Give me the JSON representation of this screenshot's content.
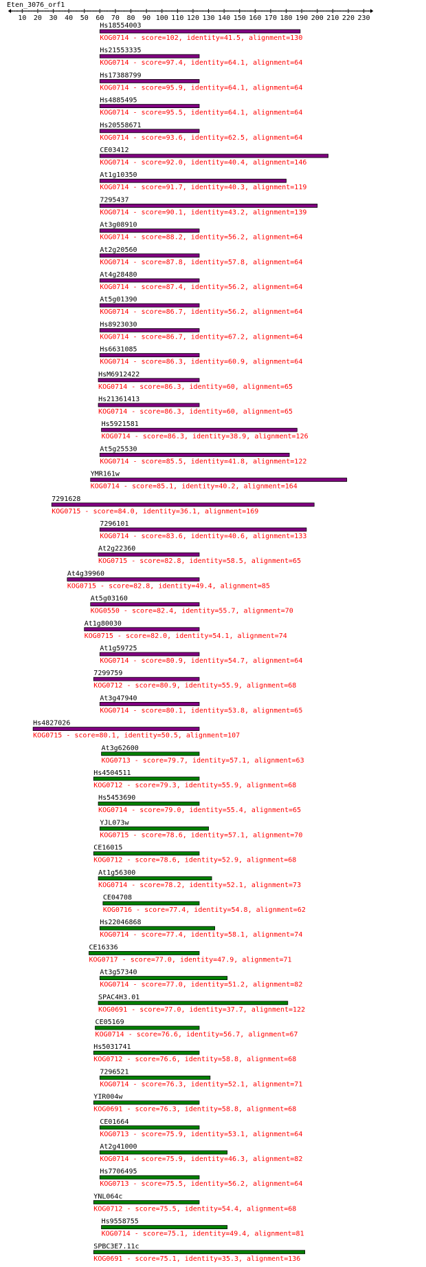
{
  "chart_data": {
    "type": "bar",
    "title": "Eten_3076_orf1",
    "xlim": [
      1,
      236
    ],
    "x_ticks": [
      10,
      20,
      30,
      40,
      50,
      60,
      70,
      80,
      90,
      100,
      110,
      120,
      130,
      140,
      150,
      160,
      170,
      180,
      190,
      200,
      210,
      220,
      230
    ],
    "colors": {
      "axis": "#000000",
      "name": "#000000",
      "description": "#ff0000",
      "bar_high": "#800080",
      "bar_low": "#008000",
      "bar_edge": "#000000"
    },
    "hits": [
      {
        "name": "Hs18554003",
        "kog": "KOG0714",
        "score": 102,
        "identity": 41.5,
        "alignment": 130,
        "start": 60,
        "end": 189,
        "color_group": "high",
        "label": "KOG0714 - score=102, identity=41.5, alignment=130"
      },
      {
        "name": "Hs21553335",
        "kog": "KOG0714",
        "score": 97.4,
        "identity": 64.1,
        "alignment": 64,
        "start": 60,
        "end": 124,
        "color_group": "high",
        "label": "KOG0714 - score=97.4, identity=64.1, alignment=64"
      },
      {
        "name": "Hs17388799",
        "kog": "KOG0714",
        "score": 95.9,
        "identity": 64.1,
        "alignment": 64,
        "start": 60,
        "end": 124,
        "color_group": "high",
        "label": "KOG0714 - score=95.9, identity=64.1, alignment=64"
      },
      {
        "name": "Hs4885495",
        "kog": "KOG0714",
        "score": 95.5,
        "identity": 64.1,
        "alignment": 64,
        "start": 60,
        "end": 124,
        "color_group": "high",
        "label": "KOG0714 - score=95.5, identity=64.1, alignment=64"
      },
      {
        "name": "Hs20558671",
        "kog": "KOG0714",
        "score": 93.6,
        "identity": 62.5,
        "alignment": 64,
        "start": 60,
        "end": 124,
        "color_group": "high",
        "label": "KOG0714 - score=93.6, identity=62.5, alignment=64"
      },
      {
        "name": "CE03412",
        "kog": "KOG0714",
        "score": 92.0,
        "identity": 40.4,
        "alignment": 146,
        "start": 60,
        "end": 207,
        "color_group": "high",
        "label": "KOG0714 - score=92.0, identity=40.4, alignment=146"
      },
      {
        "name": "At1g10350",
        "kog": "KOG0714",
        "score": 91.7,
        "identity": 40.3,
        "alignment": 119,
        "start": 60,
        "end": 180,
        "color_group": "high",
        "label": "KOG0714 - score=91.7, identity=40.3, alignment=119"
      },
      {
        "name": "7295437",
        "kog": "KOG0714",
        "score": 90.1,
        "identity": 43.2,
        "alignment": 139,
        "start": 60,
        "end": 200,
        "color_group": "high",
        "label": "KOG0714 - score=90.1, identity=43.2, alignment=139"
      },
      {
        "name": "At3g08910",
        "kog": "KOG0714",
        "score": 88.2,
        "identity": 56.2,
        "alignment": 64,
        "start": 60,
        "end": 124,
        "color_group": "high",
        "label": "KOG0714 - score=88.2, identity=56.2, alignment=64"
      },
      {
        "name": "At2g20560",
        "kog": "KOG0714",
        "score": 87.8,
        "identity": 57.8,
        "alignment": 64,
        "start": 60,
        "end": 124,
        "color_group": "high",
        "label": "KOG0714 - score=87.8, identity=57.8, alignment=64"
      },
      {
        "name": "At4g28480",
        "kog": "KOG0714",
        "score": 87.4,
        "identity": 56.2,
        "alignment": 64,
        "start": 60,
        "end": 124,
        "color_group": "high",
        "label": "KOG0714 - score=87.4, identity=56.2, alignment=64"
      },
      {
        "name": "At5g01390",
        "kog": "KOG0714",
        "score": 86.7,
        "identity": 56.2,
        "alignment": 64,
        "start": 60,
        "end": 124,
        "color_group": "high",
        "label": "KOG0714 - score=86.7, identity=56.2, alignment=64"
      },
      {
        "name": "Hs8923030",
        "kog": "KOG0714",
        "score": 86.7,
        "identity": 67.2,
        "alignment": 64,
        "start": 60,
        "end": 124,
        "color_group": "high",
        "label": "KOG0714 - score=86.7, identity=67.2, alignment=64"
      },
      {
        "name": "Hs6631085",
        "kog": "KOG0714",
        "score": 86.3,
        "identity": 60.9,
        "alignment": 64,
        "start": 60,
        "end": 124,
        "color_group": "high",
        "label": "KOG0714 - score=86.3, identity=60.9, alignment=64"
      },
      {
        "name": "HsM6912422",
        "kog": "KOG0714",
        "score": 86.3,
        "identity": 60,
        "alignment": 65,
        "start": 59,
        "end": 124,
        "color_group": "high",
        "label": "KOG0714 - score=86.3, identity=60, alignment=65"
      },
      {
        "name": "Hs21361413",
        "kog": "KOG0714",
        "score": 86.3,
        "identity": 60,
        "alignment": 65,
        "start": 59,
        "end": 124,
        "color_group": "high",
        "label": "KOG0714 - score=86.3, identity=60, alignment=65"
      },
      {
        "name": "Hs5921581",
        "kog": "KOG0714",
        "score": 86.3,
        "identity": 38.9,
        "alignment": 126,
        "start": 61,
        "end": 187,
        "color_group": "high",
        "label": "KOG0714 - score=86.3, identity=38.9, alignment=126"
      },
      {
        "name": "At5g25530",
        "kog": "KOG0714",
        "score": 85.5,
        "identity": 41.8,
        "alignment": 122,
        "start": 60,
        "end": 182,
        "color_group": "high",
        "label": "KOG0714 - score=85.5, identity=41.8, alignment=122"
      },
      {
        "name": "YMR161w",
        "kog": "KOG0714",
        "score": 85.1,
        "identity": 40.2,
        "alignment": 164,
        "start": 54,
        "end": 219,
        "color_group": "high",
        "label": "KOG0714 - score=85.1, identity=40.2, alignment=164"
      },
      {
        "name": "7291628",
        "kog": "KOG0715",
        "score": 84.0,
        "identity": 36.1,
        "alignment": 169,
        "start": 29,
        "end": 198,
        "color_group": "high",
        "label": "KOG0715 - score=84.0, identity=36.1, alignment=169"
      },
      {
        "name": "7296101",
        "kog": "KOG0714",
        "score": 83.6,
        "identity": 40.6,
        "alignment": 133,
        "start": 60,
        "end": 193,
        "color_group": "high",
        "label": "KOG0714 - score=83.6, identity=40.6, alignment=133"
      },
      {
        "name": "At2g22360",
        "kog": "KOG0715",
        "score": 82.8,
        "identity": 58.5,
        "alignment": 65,
        "start": 59,
        "end": 124,
        "color_group": "high",
        "label": "KOG0715 - score=82.8, identity=58.5, alignment=65"
      },
      {
        "name": "At4g39960",
        "kog": "KOG0715",
        "score": 82.8,
        "identity": 49.4,
        "alignment": 85,
        "start": 39,
        "end": 124,
        "color_group": "high",
        "label": "KOG0715 - score=82.8, identity=49.4, alignment=85"
      },
      {
        "name": "At5g03160",
        "kog": "KOG0550",
        "score": 82.4,
        "identity": 55.7,
        "alignment": 70,
        "start": 54,
        "end": 124,
        "color_group": "high",
        "label": "KOG0550 - score=82.4, identity=55.7, alignment=70"
      },
      {
        "name": "At1g80030",
        "kog": "KOG0715",
        "score": 82.0,
        "identity": 54.1,
        "alignment": 74,
        "start": 50,
        "end": 124,
        "color_group": "high",
        "label": "KOG0715 - score=82.0, identity=54.1, alignment=74"
      },
      {
        "name": "At1g59725",
        "kog": "KOG0714",
        "score": 80.9,
        "identity": 54.7,
        "alignment": 64,
        "start": 60,
        "end": 124,
        "color_group": "high",
        "label": "KOG0714 - score=80.9, identity=54.7, alignment=64"
      },
      {
        "name": "7299759",
        "kog": "KOG0712",
        "score": 80.9,
        "identity": 55.9,
        "alignment": 68,
        "start": 56,
        "end": 124,
        "color_group": "high",
        "label": "KOG0712 - score=80.9, identity=55.9, alignment=68"
      },
      {
        "name": "At3g47940",
        "kog": "KOG0714",
        "score": 80.1,
        "identity": 53.8,
        "alignment": 65,
        "start": 60,
        "end": 124,
        "color_group": "high",
        "label": "KOG0714 - score=80.1, identity=53.8, alignment=65"
      },
      {
        "name": "Hs4827026",
        "kog": "KOG0715",
        "score": 80.1,
        "identity": 50.5,
        "alignment": 107,
        "start": 17,
        "end": 124,
        "color_group": "high",
        "label": "KOG0715 - score=80.1, identity=50.5, alignment=107"
      },
      {
        "name": "At3g62600",
        "kog": "KOG0713",
        "score": 79.7,
        "identity": 57.1,
        "alignment": 63,
        "start": 61,
        "end": 124,
        "color_group": "low",
        "label": "KOG0713 - score=79.7, identity=57.1, alignment=63"
      },
      {
        "name": "Hs4504511",
        "kog": "KOG0712",
        "score": 79.3,
        "identity": 55.9,
        "alignment": 68,
        "start": 56,
        "end": 124,
        "color_group": "low",
        "label": "KOG0712 - score=79.3, identity=55.9, alignment=68"
      },
      {
        "name": "Hs5453690",
        "kog": "KOG0714",
        "score": 79.0,
        "identity": 55.4,
        "alignment": 65,
        "start": 59,
        "end": 124,
        "color_group": "low",
        "label": "KOG0714 - score=79.0, identity=55.4, alignment=65"
      },
      {
        "name": "YJL073w",
        "kog": "KOG0715",
        "score": 78.6,
        "identity": 57.1,
        "alignment": 70,
        "start": 60,
        "end": 130,
        "color_group": "low",
        "label": "KOG0715 - score=78.6, identity=57.1, alignment=70"
      },
      {
        "name": "CE16015",
        "kog": "KOG0712",
        "score": 78.6,
        "identity": 52.9,
        "alignment": 68,
        "start": 56,
        "end": 124,
        "color_group": "low",
        "label": "KOG0712 - score=78.6, identity=52.9, alignment=68"
      },
      {
        "name": "At1g56300",
        "kog": "KOG0714",
        "score": 78.2,
        "identity": 52.1,
        "alignment": 73,
        "start": 59,
        "end": 132,
        "color_group": "low",
        "label": "KOG0714 - score=78.2, identity=52.1, alignment=73"
      },
      {
        "name": "CE04708",
        "kog": "KOG0716",
        "score": 77.4,
        "identity": 54.8,
        "alignment": 62,
        "start": 62,
        "end": 124,
        "color_group": "low",
        "label": "KOG0716 - score=77.4, identity=54.8, alignment=62"
      },
      {
        "name": "Hs22046868",
        "kog": "KOG0714",
        "score": 77.4,
        "identity": 58.1,
        "alignment": 74,
        "start": 60,
        "end": 134,
        "color_group": "low",
        "label": "KOG0714 - score=77.4, identity=58.1, alignment=74"
      },
      {
        "name": "CE16336",
        "kog": "KOG0717",
        "score": 77.0,
        "identity": 47.9,
        "alignment": 71,
        "start": 53,
        "end": 124,
        "color_group": "low",
        "label": "KOG0717 - score=77.0, identity=47.9, alignment=71"
      },
      {
        "name": "At3g57340",
        "kog": "KOG0714",
        "score": 77.0,
        "identity": 51.2,
        "alignment": 82,
        "start": 60,
        "end": 142,
        "color_group": "low",
        "label": "KOG0714 - score=77.0, identity=51.2, alignment=82"
      },
      {
        "name": "SPAC4H3.01",
        "kog": "KOG0691",
        "score": 77.0,
        "identity": 37.7,
        "alignment": 122,
        "start": 59,
        "end": 181,
        "color_group": "low",
        "label": "KOG0691 - score=77.0, identity=37.7, alignment=122"
      },
      {
        "name": "CE05169",
        "kog": "KOG0714",
        "score": 76.6,
        "identity": 56.7,
        "alignment": 67,
        "start": 57,
        "end": 124,
        "color_group": "low",
        "label": "KOG0714 - score=76.6, identity=56.7, alignment=67"
      },
      {
        "name": "Hs5031741",
        "kog": "KOG0712",
        "score": 76.6,
        "identity": 58.8,
        "alignment": 68,
        "start": 56,
        "end": 124,
        "color_group": "low",
        "label": "KOG0712 - score=76.6, identity=58.8, alignment=68"
      },
      {
        "name": "7296521",
        "kog": "KOG0714",
        "score": 76.3,
        "identity": 52.1,
        "alignment": 71,
        "start": 60,
        "end": 131,
        "color_group": "low",
        "label": "KOG0714 - score=76.3, identity=52.1, alignment=71"
      },
      {
        "name": "YIR004w",
        "kog": "KOG0691",
        "score": 76.3,
        "identity": 58.8,
        "alignment": 68,
        "start": 56,
        "end": 124,
        "color_group": "low",
        "label": "KOG0691 - score=76.3, identity=58.8, alignment=68"
      },
      {
        "name": "CE01664",
        "kog": "KOG0713",
        "score": 75.9,
        "identity": 53.1,
        "alignment": 64,
        "start": 60,
        "end": 124,
        "color_group": "low",
        "label": "KOG0713 - score=75.9, identity=53.1, alignment=64"
      },
      {
        "name": "At2g41000",
        "kog": "KOG0714",
        "score": 75.9,
        "identity": 46.3,
        "alignment": 82,
        "start": 60,
        "end": 142,
        "color_group": "low",
        "label": "KOG0714 - score=75.9, identity=46.3, alignment=82"
      },
      {
        "name": "Hs7706495",
        "kog": "KOG0713",
        "score": 75.5,
        "identity": 56.2,
        "alignment": 64,
        "start": 60,
        "end": 124,
        "color_group": "low",
        "label": "KOG0713 - score=75.5, identity=56.2, alignment=64"
      },
      {
        "name": "YNL064c",
        "kog": "KOG0712",
        "score": 75.5,
        "identity": 54.4,
        "alignment": 68,
        "start": 56,
        "end": 124,
        "color_group": "low",
        "label": "KOG0712 - score=75.5, identity=54.4, alignment=68"
      },
      {
        "name": "Hs9558755",
        "kog": "KOG0714",
        "score": 75.1,
        "identity": 49.4,
        "alignment": 81,
        "start": 61,
        "end": 142,
        "color_group": "low",
        "label": "KOG0714 - score=75.1, identity=49.4, alignment=81"
      },
      {
        "name": "SPBC3E7.11c",
        "kog": "KOG0691",
        "score": 75.1,
        "identity": 35.3,
        "alignment": 136,
        "start": 56,
        "end": 192,
        "color_group": "low",
        "label": "KOG0691 - score=75.1, identity=35.3, alignment=136"
      }
    ]
  }
}
